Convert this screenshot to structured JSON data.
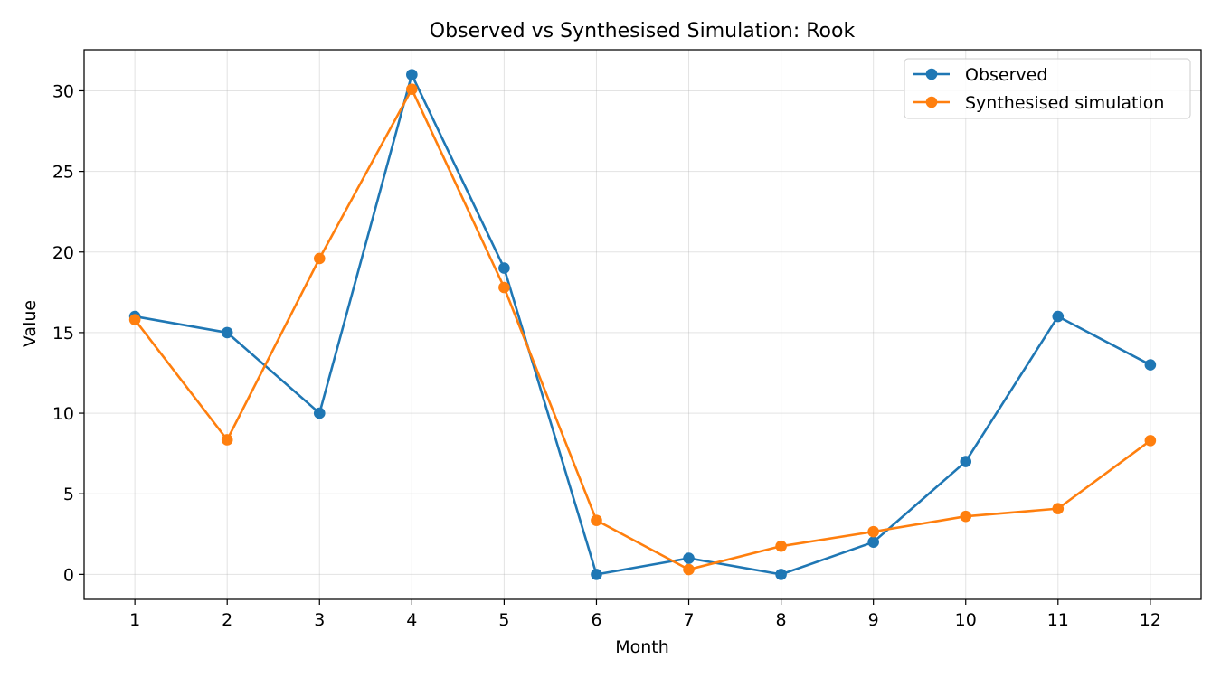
{
  "chart_data": {
    "type": "line",
    "title": "Observed vs Synthesised Simulation: Rook",
    "xlabel": "Month",
    "ylabel": "Value",
    "x": [
      1,
      2,
      3,
      4,
      5,
      6,
      7,
      8,
      9,
      10,
      11,
      12
    ],
    "xticks": [
      "1",
      "2",
      "3",
      "4",
      "5",
      "6",
      "7",
      "8",
      "9",
      "10",
      "11",
      "12"
    ],
    "yticks": [
      0,
      5,
      10,
      15,
      20,
      25,
      30
    ],
    "xlim": [
      0.45,
      12.55
    ],
    "ylim": [
      -1.55,
      32.55
    ],
    "grid": true,
    "legend_position": "top-right",
    "series": [
      {
        "name": "Observed",
        "color": "#1f77b4",
        "marker": "circle",
        "values": [
          16,
          15,
          10,
          31,
          19,
          0,
          1,
          0,
          2,
          7,
          16,
          13
        ]
      },
      {
        "name": "Synthesised simulation",
        "color": "#ff7f0e",
        "marker": "circle",
        "values": [
          15.8,
          8.35,
          19.6,
          30.1,
          17.8,
          3.35,
          0.3,
          1.75,
          2.65,
          3.6,
          4.08,
          8.3
        ]
      }
    ]
  }
}
